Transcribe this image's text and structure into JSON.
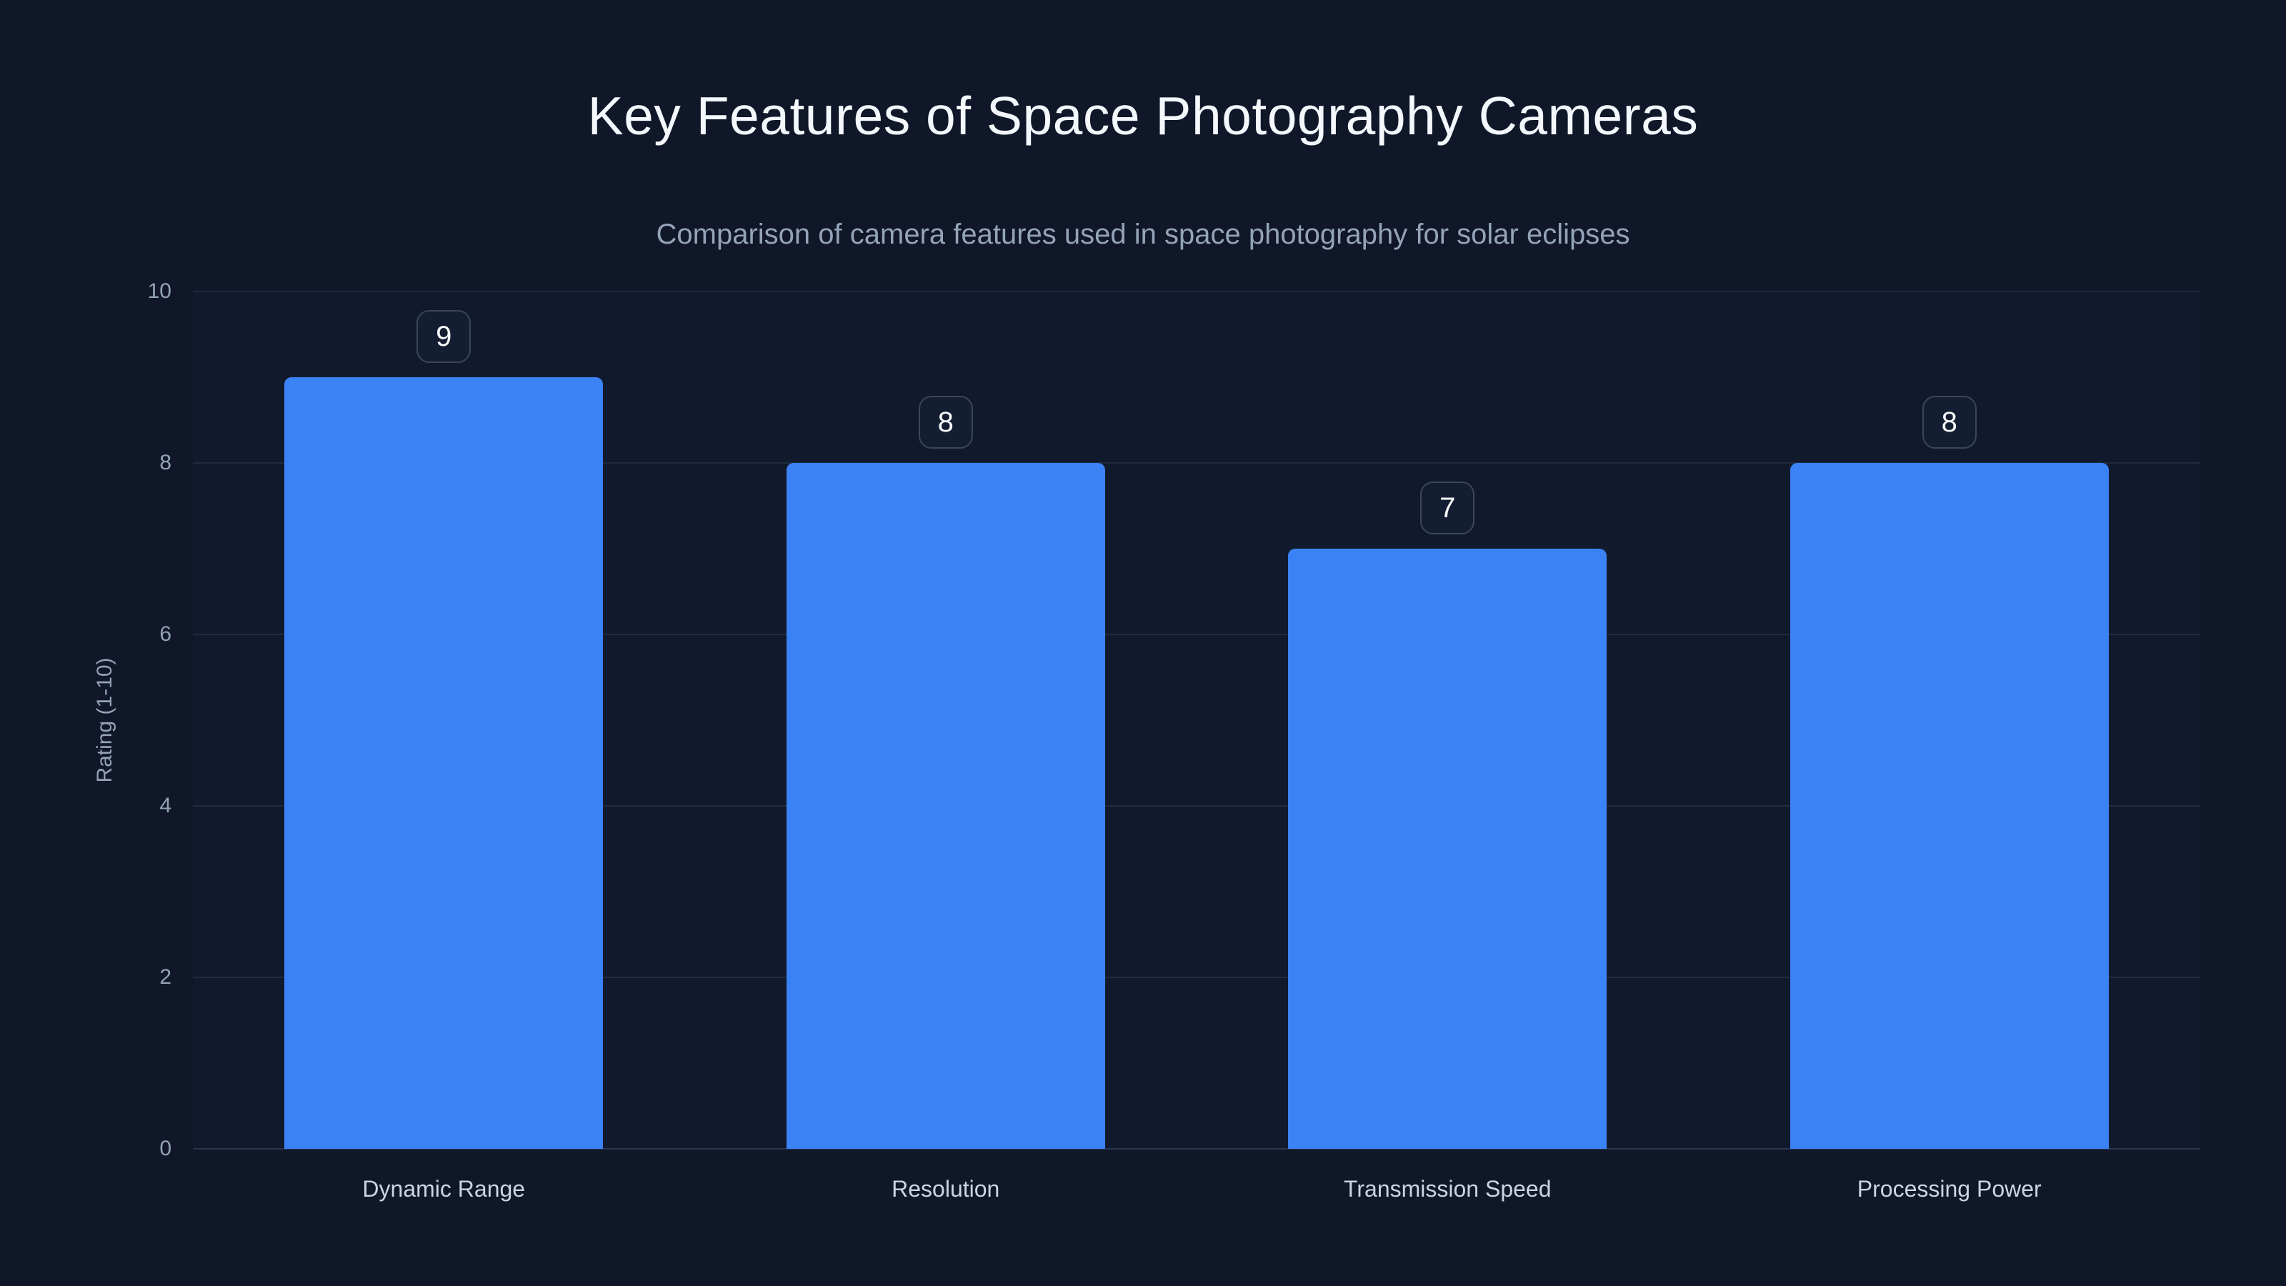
{
  "chart_data": {
    "type": "bar",
    "title": "Key Features of Space Photography Cameras",
    "subtitle": "Comparison of camera features used in space photography for solar eclipses",
    "categories": [
      "Dynamic Range",
      "Resolution",
      "Transmission Speed",
      "Processing Power"
    ],
    "values": [
      9,
      8,
      7,
      8
    ],
    "value_labels": [
      "9",
      "8",
      "7",
      "8"
    ],
    "xlabel": "",
    "ylabel": "Rating (1-10)",
    "ylim": [
      0,
      10
    ],
    "yticks": [
      0,
      2,
      4,
      6,
      8,
      10
    ],
    "grid": "horizontal-only",
    "legend_position": "none",
    "colors": {
      "background": "#0f1728",
      "plot_background": "#111a2d",
      "bar_fill": "#3b82f6",
      "gridline": "#1f2b40",
      "axis_line": "#2a3650",
      "axis_text": "#94a3b8",
      "category_text": "#cbd5e1",
      "title_text": "#f4f7fb",
      "subtitle_text": "#94a3b8",
      "badge_border": "#3b4758",
      "badge_background": "#141e32",
      "badge_text": "#f8fafc"
    }
  }
}
